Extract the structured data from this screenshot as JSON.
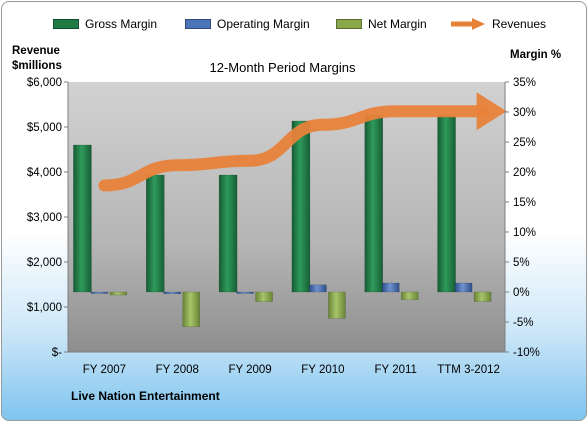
{
  "chart_data": {
    "type": "bar",
    "title": "12-Month Period Margins",
    "left_axis_label": [
      "Revenue",
      "$millions"
    ],
    "right_axis_label": "Margin %",
    "categories": [
      "FY 2007",
      "FY 2008",
      "FY 2009",
      "FY 2010",
      "FY 2011",
      "TTM 3-2012"
    ],
    "left_ticks": [
      "$-",
      "$1,000",
      "$2,000",
      "$3,000",
      "$4,000",
      "$5,000",
      "$6,000"
    ],
    "right_ticks": [
      "-10%",
      "-5%",
      "0%",
      "5%",
      "10%",
      "15%",
      "20%",
      "25%",
      "30%",
      "35%"
    ],
    "ylim_left": [
      0,
      6000
    ],
    "ylim_right": [
      -10,
      35
    ],
    "series": [
      {
        "name": "Gross Margin",
        "axis": "right",
        "values": [
          24.5,
          19.5,
          19.5,
          28.5,
          29.5,
          29.5
        ],
        "color": "#1f7a45"
      },
      {
        "name": "Operating Margin",
        "axis": "right",
        "values": [
          -0.2,
          -0.3,
          -0.1,
          1.2,
          1.5,
          1.5
        ],
        "color": "#4a73b8"
      },
      {
        "name": "Net Margin",
        "axis": "right",
        "values": [
          -0.5,
          -5.8,
          -1.6,
          -4.4,
          -1.3,
          -1.6
        ],
        "color": "#8aa84a"
      },
      {
        "name": "Revenues",
        "axis": "left",
        "type": "line",
        "values": [
          3700,
          4150,
          4250,
          5050,
          5350,
          5350
        ],
        "color": "#e8823a"
      }
    ],
    "grid": false,
    "legend": "top"
  },
  "company": "Live Nation Entertainment"
}
